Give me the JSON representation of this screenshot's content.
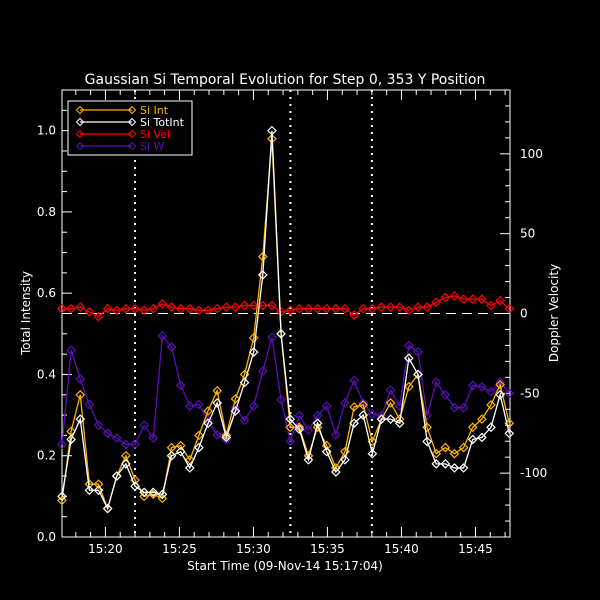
{
  "chart_data": {
    "type": "line",
    "title": "Gaussian Si Temporal Evolution for Step 0, 353 Y Position",
    "xlabel": "Start Time (09-Nov-14 15:17:04)",
    "ylabel": "Total Intensity",
    "y2label": "Doppler Velocity",
    "xlim": [
      "15:17:04",
      "15:47:20"
    ],
    "ylim": [
      0,
      1.1
    ],
    "y2lim": [
      -140,
      140
    ],
    "x_ticks": [
      "15:20",
      "15:25",
      "15:30",
      "15:35",
      "15:40",
      "15:45"
    ],
    "y_ticks": [
      "0.0",
      "0.2",
      "0.4",
      "0.6",
      "0.8",
      "1.0"
    ],
    "y2_ticks": [
      "-100",
      "-50",
      "0",
      "50",
      "100"
    ],
    "legend_position": "top-left",
    "grid": false,
    "vertical_markers": [
      "15:22:00",
      "15:32:30",
      "15:38:00"
    ],
    "zero_line_axis": "y2",
    "x": [
      "15:17:04",
      "15:17:41",
      "15:18:18",
      "15:18:55",
      "15:19:32",
      "15:20:09",
      "15:20:46",
      "15:21:23",
      "15:22:00",
      "15:22:37",
      "15:23:14",
      "15:23:51",
      "15:24:28",
      "15:25:05",
      "15:25:42",
      "15:26:19",
      "15:26:56",
      "15:27:33",
      "15:28:10",
      "15:28:47",
      "15:29:24",
      "15:30:01",
      "15:30:38",
      "15:31:15",
      "15:31:52",
      "15:32:29",
      "15:33:06",
      "15:33:43",
      "15:34:20",
      "15:34:57",
      "15:35:34",
      "15:36:11",
      "15:36:48",
      "15:37:25",
      "15:38:02",
      "15:38:39",
      "15:39:16",
      "15:39:53",
      "15:40:30",
      "15:41:07",
      "15:41:44",
      "15:42:21",
      "15:42:58",
      "15:43:35",
      "15:44:12",
      "15:44:49",
      "15:45:26",
      "15:46:03",
      "15:46:40",
      "15:47:17"
    ],
    "series": [
      {
        "name": "Si Int",
        "axis": "left",
        "color": "#ffb300",
        "values": [
          0.09,
          0.26,
          0.35,
          0.13,
          0.13,
          0.07,
          0.15,
          0.2,
          0.14,
          0.1,
          0.105,
          0.095,
          0.22,
          0.225,
          0.19,
          0.25,
          0.31,
          0.36,
          0.25,
          0.34,
          0.4,
          0.49,
          0.69,
          0.98,
          0.5,
          0.27,
          0.27,
          0.2,
          0.27,
          0.225,
          0.17,
          0.21,
          0.32,
          0.325,
          0.235,
          0.29,
          0.33,
          0.29,
          0.37,
          0.4,
          0.27,
          0.205,
          0.22,
          0.205,
          0.22,
          0.27,
          0.29,
          0.325,
          0.375,
          0.28
        ]
      },
      {
        "name": "Si TotInt",
        "axis": "left",
        "color": "#ffffff",
        "values": [
          0.1,
          0.24,
          0.29,
          0.115,
          0.115,
          0.07,
          0.15,
          0.18,
          0.125,
          0.11,
          0.11,
          0.105,
          0.2,
          0.21,
          0.17,
          0.22,
          0.28,
          0.33,
          0.245,
          0.31,
          0.38,
          0.455,
          0.645,
          1.0,
          0.5,
          0.29,
          0.265,
          0.19,
          0.28,
          0.21,
          0.16,
          0.19,
          0.28,
          0.3,
          0.205,
          0.29,
          0.29,
          0.28,
          0.44,
          0.4,
          0.235,
          0.18,
          0.18,
          0.17,
          0.17,
          0.24,
          0.245,
          0.27,
          0.35,
          0.255
        ]
      },
      {
        "name": "Si Vel",
        "axis": "right",
        "color": "#ff0000",
        "values": [
          3,
          3,
          4,
          1,
          -2,
          3,
          2,
          3,
          3,
          2,
          3,
          6,
          4,
          3,
          3,
          2,
          2,
          3,
          4,
          4,
          5,
          5,
          5,
          5,
          1,
          2,
          3,
          3,
          3,
          3,
          3,
          3,
          -1,
          3,
          3,
          4,
          4,
          4,
          2,
          4,
          4,
          7,
          10,
          11,
          9,
          9,
          9,
          5,
          8,
          3
        ]
      },
      {
        "name": "Si W",
        "axis": "right",
        "color": "#5a0fb4",
        "values": [
          -82,
          -23,
          -41,
          -57,
          -70,
          -75,
          -78,
          -82,
          -82,
          -70,
          -78,
          -14,
          -21,
          -45,
          -58,
          -57,
          -67,
          -76,
          -79,
          -59,
          -67,
          -58,
          -36,
          -15,
          -54,
          -80,
          -64,
          -73,
          -64,
          -58,
          -76,
          -56,
          -42,
          -56,
          -63,
          -64,
          -48,
          -58,
          -20,
          -24,
          -64,
          -43,
          -51,
          -59,
          -59,
          -45,
          -46,
          -49,
          -43,
          -50
        ]
      }
    ]
  }
}
